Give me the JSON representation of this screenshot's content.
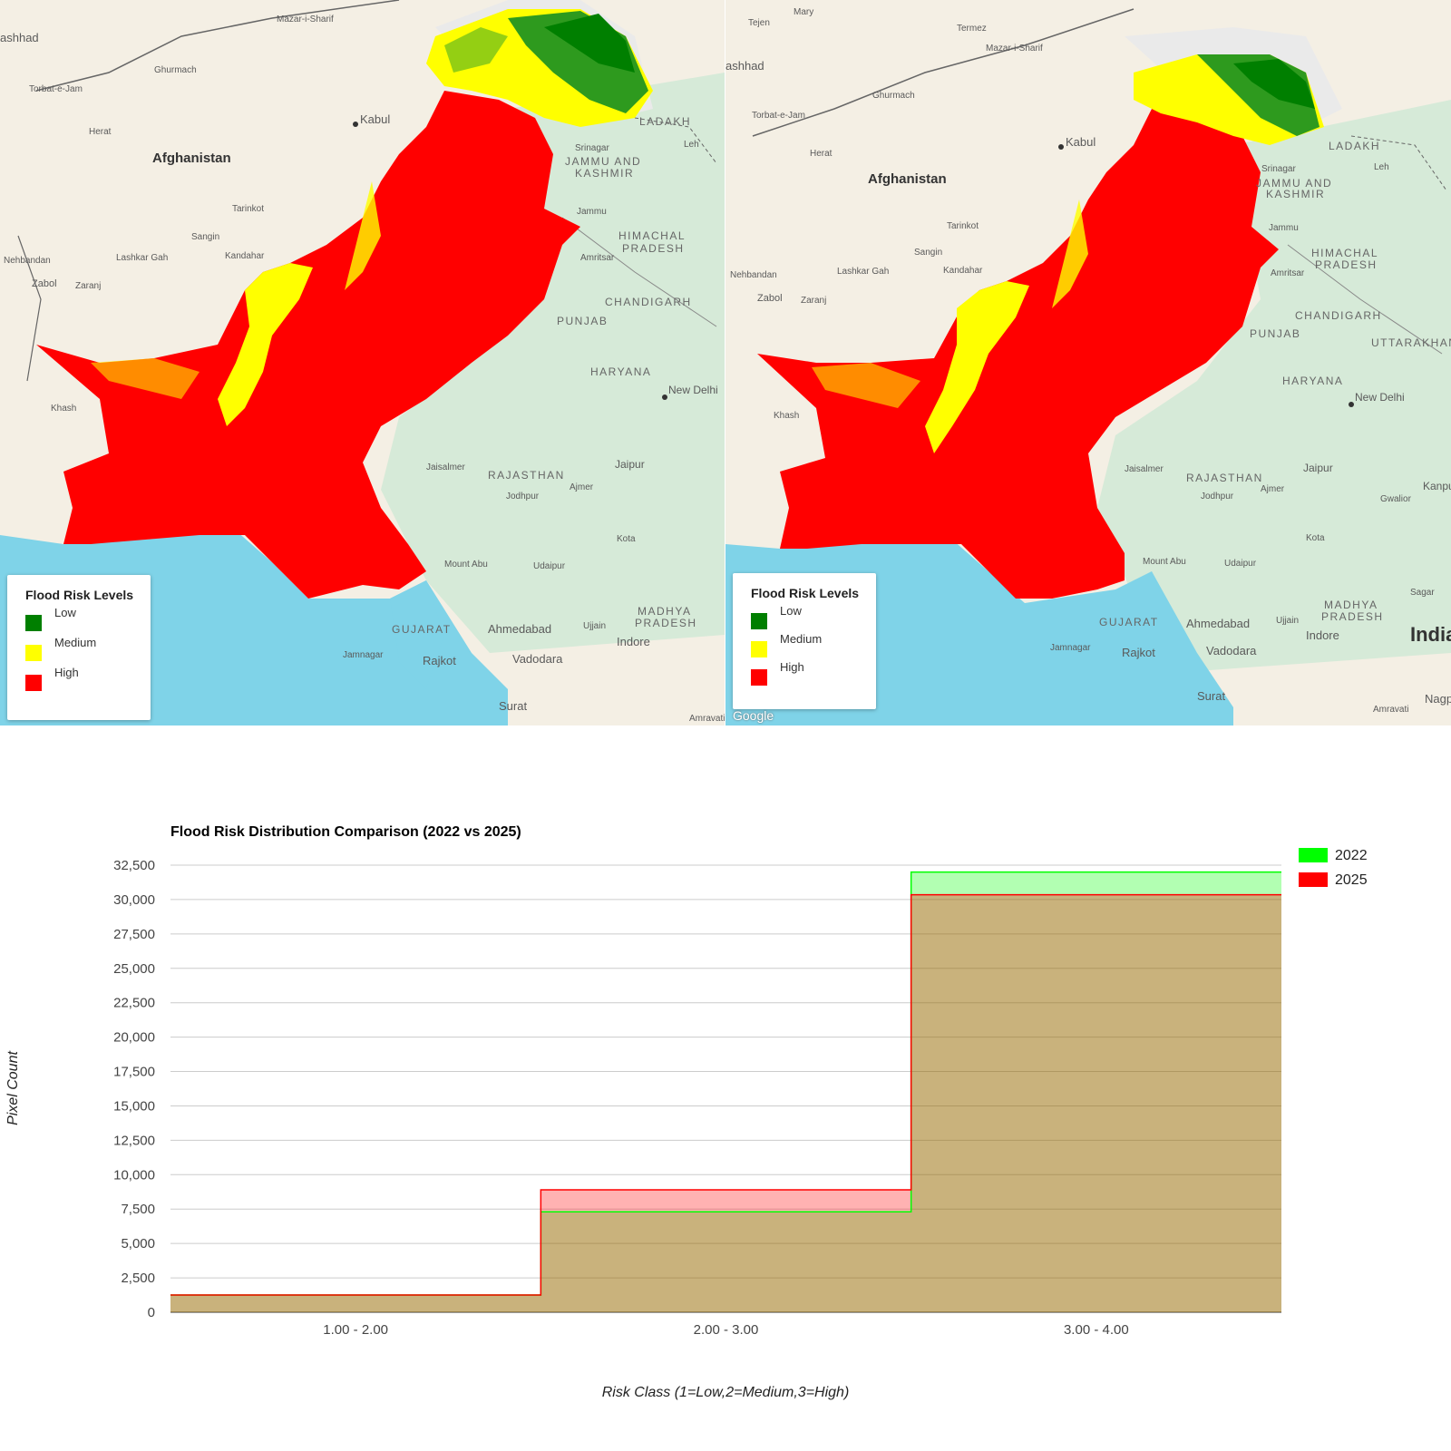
{
  "maps": [
    {
      "id": "left",
      "legend": {
        "title": "Flood Risk Levels",
        "items": [
          {
            "label": "Low",
            "color": "#007f00"
          },
          {
            "label": "Medium",
            "color": "#ffff00"
          },
          {
            "label": "High",
            "color": "#ff0000"
          }
        ]
      },
      "labels": {
        "countries": [
          "Afghanistan"
        ],
        "cities": [
          "Mazar-i-Sharif",
          "Kabul",
          "Herat",
          "Ghurmach",
          "Tarinkot",
          "Sangin",
          "Lashkar Gah",
          "Kandahar",
          "Zabol",
          "Zaranj",
          "Nehbandan",
          "Khash",
          "Srinagar",
          "Leh",
          "Jammu",
          "Amritsar",
          "New Delhi",
          "Jaisalmer",
          "Jodhpur",
          "Ajmer",
          "Jaipur",
          "Kota",
          "Udaipur",
          "Mount Abu",
          "Ahmedabad",
          "Ujjain",
          "Indore",
          "Vadodara",
          "Rajkot",
          "Jamnagar",
          "Surat",
          "Amravati",
          "Mashhad",
          "Torbat-e-Jam"
        ],
        "regions": [
          "LADAKH",
          "JAMMU AND KASHMIR",
          "HIMACHAL PRADESH",
          "CHANDIGARH",
          "PUNJAB",
          "HARYANA",
          "RAJASTHAN",
          "GUJARAT",
          "MADHYA PRADESH"
        ]
      }
    },
    {
      "id": "right",
      "legend": {
        "title": "Flood Risk Levels",
        "items": [
          {
            "label": "Low",
            "color": "#007f00"
          },
          {
            "label": "Medium",
            "color": "#ffff00"
          },
          {
            "label": "High",
            "color": "#ff0000"
          }
        ]
      },
      "labels": {
        "countries": [
          "Afghanistan",
          "India"
        ],
        "cities": [
          "Tejen",
          "Mary",
          "Termez",
          "Mazar-i-Sharif",
          "Kabul",
          "Herat",
          "Ghurmach",
          "Tarinkot",
          "Sangin",
          "Lashkar Gah",
          "Kandahar",
          "Zabol",
          "Zaranj",
          "Nehbandan",
          "Khash",
          "Srinagar",
          "Leh",
          "Jammu",
          "Amritsar",
          "New Delhi",
          "Jaisalmer",
          "Jodhpur",
          "Ajmer",
          "Jaipur",
          "Gwalior",
          "Kanpur",
          "Kota",
          "Udaipur",
          "Mount Abu",
          "Sagar",
          "Ahmedabad",
          "Ujjain",
          "Indore",
          "Vadodara",
          "Rajkot",
          "Jamnagar",
          "Surat",
          "Amravati",
          "Nagpur",
          "Mashhad",
          "Torbat-e-Jam"
        ],
        "regions": [
          "LADAKH",
          "JAMMU AND KASHMIR",
          "HIMACHAL PRADESH",
          "CHANDIGARH",
          "UTTARAKHAND",
          "PUNJAB",
          "HARYANA",
          "RAJASTHAN",
          "GUJARAT",
          "MADHYA PRADESH"
        ]
      },
      "attribution": "Google"
    }
  ],
  "chart_data": {
    "type": "area",
    "title": "Flood Risk Distribution Comparison (2022 vs 2025)",
    "xlabel": "Risk Class (1=Low,2=Medium,3=High)",
    "ylabel": "Pixel Count",
    "categories": [
      "1.00 - 2.00",
      "2.00 - 3.00",
      "3.00 - 4.00"
    ],
    "ylim": [
      0,
      32500
    ],
    "yticks": [
      0,
      2500,
      5000,
      7500,
      10000,
      12500,
      15000,
      17500,
      20000,
      22500,
      25000,
      27500,
      30000,
      32500
    ],
    "ytick_labels": [
      "0",
      "2,500",
      "5,000",
      "7,500",
      "10,000",
      "12,500",
      "15,000",
      "17,500",
      "20,000",
      "22,500",
      "25,000",
      "27,500",
      "30,000",
      "32,500"
    ],
    "grid": true,
    "legend_position": "top-right",
    "series": [
      {
        "name": "2022",
        "values": [
          1250,
          7300,
          32000
        ],
        "color": "#00ff00"
      },
      {
        "name": "2025",
        "values": [
          1250,
          8900,
          30350
        ],
        "color": "#ff0000"
      }
    ]
  }
}
